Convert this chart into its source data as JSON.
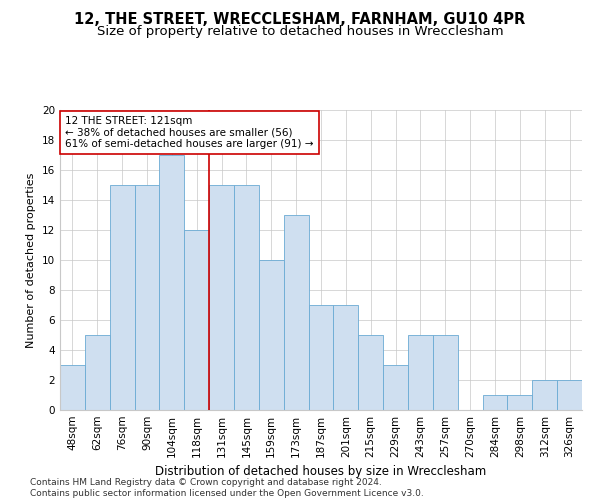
{
  "title1": "12, THE STREET, WRECCLESHAM, FARNHAM, GU10 4PR",
  "title2": "Size of property relative to detached houses in Wrecclesham",
  "xlabel": "Distribution of detached houses by size in Wrecclesham",
  "ylabel": "Number of detached properties",
  "categories": [
    "48sqm",
    "62sqm",
    "76sqm",
    "90sqm",
    "104sqm",
    "118sqm",
    "131sqm",
    "145sqm",
    "159sqm",
    "173sqm",
    "187sqm",
    "201sqm",
    "215sqm",
    "229sqm",
    "243sqm",
    "257sqm",
    "270sqm",
    "284sqm",
    "298sqm",
    "312sqm",
    "326sqm"
  ],
  "values": [
    3,
    5,
    15,
    15,
    17,
    12,
    15,
    15,
    10,
    13,
    7,
    7,
    5,
    3,
    5,
    5,
    0,
    1,
    1,
    2,
    2
  ],
  "bar_color": "#cfdff0",
  "bar_edge_color": "#6aaad4",
  "vline_x_index": 5.5,
  "vline_color": "#cc0000",
  "annotation_line1": "12 THE STREET: 121sqm",
  "annotation_line2": "← 38% of detached houses are smaller (56)",
  "annotation_line3": "61% of semi-detached houses are larger (91) →",
  "annotation_box_color": "#ffffff",
  "annotation_box_edge": "#cc0000",
  "ylim": [
    0,
    20
  ],
  "yticks": [
    0,
    2,
    4,
    6,
    8,
    10,
    12,
    14,
    16,
    18,
    20
  ],
  "grid_color": "#c8c8c8",
  "footnote": "Contains HM Land Registry data © Crown copyright and database right 2024.\nContains public sector information licensed under the Open Government Licence v3.0.",
  "title1_fontsize": 10.5,
  "title2_fontsize": 9.5,
  "xlabel_fontsize": 8.5,
  "ylabel_fontsize": 8,
  "tick_fontsize": 7.5,
  "annot_fontsize": 7.5,
  "footnote_fontsize": 6.5
}
